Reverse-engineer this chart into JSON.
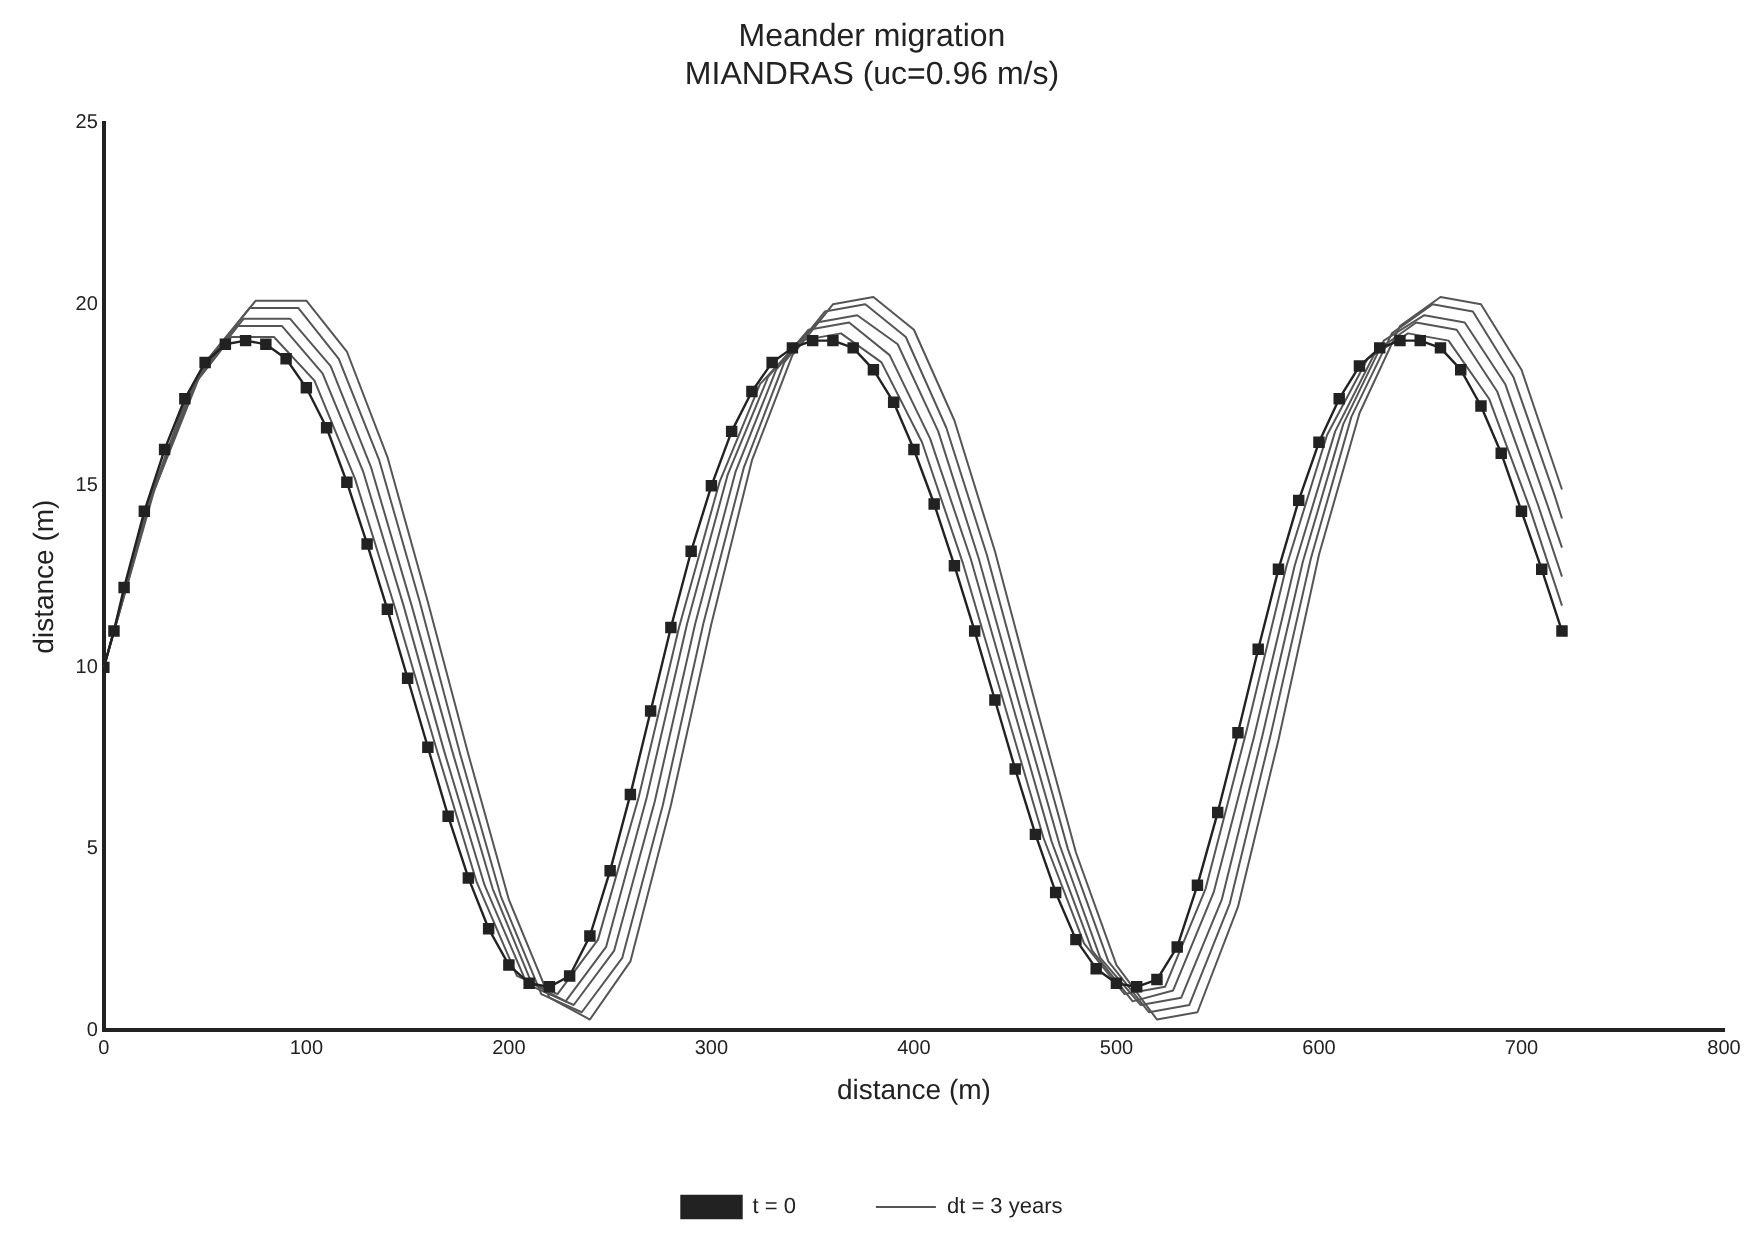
{
  "chart_data": {
    "type": "line",
    "title": "Meander migration",
    "subtitle": "MIANDRAS (uc=0.96 m/s)",
    "xlabel": "distance (m)",
    "ylabel": "distance (m)",
    "xlim": [
      0,
      800
    ],
    "xticks": [
      0,
      100,
      200,
      300,
      400,
      500,
      600,
      700,
      800
    ],
    "ylim": [
      0,
      25
    ],
    "yticks": [
      0,
      5,
      10,
      15,
      20,
      25
    ],
    "grid": false,
    "legend": "bottom",
    "series": [
      {
        "name": "t = 0",
        "color": "#222222",
        "marker": "square",
        "x": [
          0,
          5,
          10,
          20,
          30,
          40,
          50,
          60,
          70,
          80,
          90,
          100,
          110,
          120,
          130,
          140,
          150,
          160,
          170,
          180,
          190,
          200,
          210,
          220,
          230,
          240,
          250,
          260,
          270,
          280,
          290,
          300,
          310,
          320,
          330,
          340,
          350,
          360,
          370,
          380,
          390,
          400,
          410,
          420,
          430,
          440,
          450,
          460,
          470,
          480,
          490,
          500,
          510,
          520,
          530,
          540,
          550,
          560,
          570,
          580,
          590,
          600,
          610,
          620,
          630,
          640,
          650,
          660,
          670,
          680,
          690,
          700,
          710,
          720
        ],
        "values": [
          10,
          11,
          12.2,
          14.3,
          16,
          17.4,
          18.4,
          18.9,
          19,
          18.9,
          18.5,
          17.7,
          16.6,
          15.1,
          13.4,
          11.6,
          9.7,
          7.8,
          5.9,
          4.2,
          2.8,
          1.8,
          1.3,
          1.2,
          1.5,
          2.6,
          4.4,
          6.5,
          8.8,
          11.1,
          13.2,
          15,
          16.5,
          17.6,
          18.4,
          18.8,
          19,
          19,
          18.8,
          18.2,
          17.3,
          16,
          14.5,
          12.8,
          11,
          9.1,
          7.2,
          5.4,
          3.8,
          2.5,
          1.7,
          1.3,
          1.2,
          1.4,
          2.3,
          4,
          6,
          8.2,
          10.5,
          12.7,
          14.6,
          16.2,
          17.4,
          18.3,
          18.8,
          19,
          19,
          18.8,
          18.2,
          17.2,
          15.9,
          14.3,
          12.7,
          11
        ]
      },
      {
        "name": "dt = 3 years",
        "color": "#555555",
        "marker": "none",
        "x": [
          0,
          21,
          42,
          63,
          84,
          104,
          124,
          144,
          164,
          184,
          204,
          224,
          244,
          264,
          284,
          304,
          324,
          344,
          364,
          384,
          404,
          424,
          444,
          464,
          484,
          504,
          524,
          544,
          564,
          584,
          604,
          624,
          644,
          664,
          684,
          704,
          720
        ],
        "values": [
          10,
          14.4,
          17.6,
          19.1,
          19.1,
          17.9,
          15.2,
          11.6,
          7.8,
          4.1,
          1.5,
          1,
          2.5,
          6.4,
          11.1,
          15.1,
          17.8,
          19,
          19.2,
          18.4,
          16.2,
          12.9,
          9.1,
          5.3,
          2.4,
          1,
          1.2,
          3.9,
          8.2,
          12.8,
          16.4,
          18.5,
          19.2,
          19,
          17.4,
          14.4,
          11.7
        ]
      },
      {
        "color": "#555555",
        "marker": "none",
        "x": [
          0,
          22,
          44,
          66,
          88,
          108,
          128,
          148,
          168,
          188,
          208,
          228,
          248,
          268,
          288,
          308,
          328,
          348,
          368,
          388,
          408,
          428,
          448,
          468,
          488,
          508,
          528,
          548,
          568,
          588,
          608,
          628,
          648,
          668,
          688,
          708,
          720
        ],
        "values": [
          10,
          14.5,
          17.8,
          19.4,
          19.4,
          18.1,
          15.4,
          11.7,
          7.7,
          4,
          1.4,
          0.8,
          2.3,
          6.4,
          11.2,
          15.3,
          18,
          19.3,
          19.5,
          18.6,
          16.3,
          13,
          9.1,
          5.2,
          2.2,
          0.8,
          1.1,
          3.8,
          8.1,
          12.8,
          16.5,
          18.7,
          19.5,
          19.3,
          17.6,
          14.5,
          12.5
        ]
      },
      {
        "color": "#555555",
        "marker": "none",
        "x": [
          0,
          23,
          46,
          69,
          92,
          112,
          132,
          152,
          172,
          192,
          212,
          232,
          252,
          272,
          292,
          312,
          332,
          352,
          372,
          392,
          412,
          432,
          452,
          472,
          492,
          512,
          532,
          552,
          572,
          592,
          612,
          632,
          652,
          672,
          692,
          712,
          720
        ],
        "values": [
          10,
          14.6,
          18,
          19.6,
          19.6,
          18.3,
          15.5,
          11.7,
          7.7,
          3.9,
          1.2,
          0.7,
          2.2,
          6.3,
          11.2,
          15.4,
          18.2,
          19.5,
          19.7,
          18.9,
          16.5,
          13,
          9,
          5.1,
          2,
          0.7,
          0.9,
          3.6,
          8.1,
          12.9,
          16.7,
          19,
          19.7,
          19.5,
          17.8,
          14.6,
          13.3
        ]
      },
      {
        "color": "#555555",
        "marker": "none",
        "x": [
          0,
          24,
          48,
          72,
          96,
          116,
          136,
          156,
          176,
          196,
          216,
          236,
          256,
          276,
          296,
          316,
          336,
          356,
          376,
          396,
          416,
          436,
          456,
          476,
          496,
          516,
          536,
          556,
          576,
          596,
          616,
          636,
          656,
          676,
          696,
          716,
          720
        ],
        "values": [
          10,
          14.8,
          18.2,
          19.9,
          19.9,
          18.5,
          15.7,
          11.8,
          7.6,
          3.7,
          1,
          0.5,
          2,
          6.2,
          11.2,
          15.5,
          18.4,
          19.8,
          20,
          19.1,
          16.6,
          13.1,
          9,
          5,
          1.9,
          0.5,
          0.7,
          3.5,
          8.1,
          13,
          16.9,
          19.2,
          20,
          19.8,
          18,
          14.8,
          14.1
        ]
      },
      {
        "color": "#555555",
        "marker": "none",
        "x": [
          0,
          25,
          50,
          75,
          100,
          120,
          140,
          160,
          180,
          200,
          220,
          240,
          260,
          280,
          300,
          320,
          340,
          360,
          380,
          400,
          420,
          440,
          460,
          480,
          500,
          520,
          540,
          560,
          580,
          600,
          620,
          640,
          660,
          680,
          700,
          720
        ],
        "values": [
          10,
          14.9,
          18.4,
          20.1,
          20.1,
          18.7,
          15.8,
          11.8,
          7.6,
          3.6,
          0.9,
          0.3,
          1.9,
          6.2,
          11.2,
          15.7,
          18.6,
          20,
          20.2,
          19.3,
          16.8,
          13.2,
          9,
          4.9,
          1.8,
          0.3,
          0.5,
          3.4,
          8,
          13.1,
          17,
          19.4,
          20.2,
          20,
          18.2,
          14.9
        ]
      }
    ]
  }
}
